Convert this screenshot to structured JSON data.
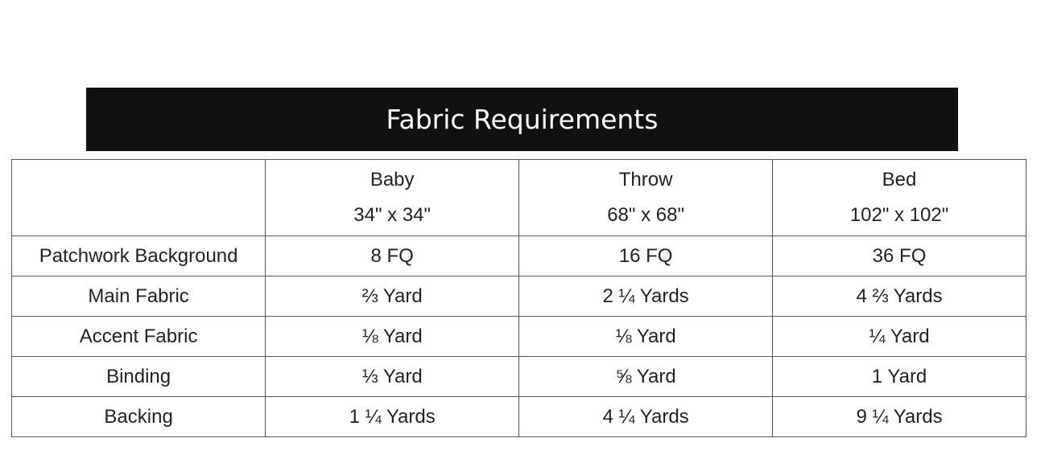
{
  "title": "Fabric Requirements",
  "columns": [
    {
      "name": "Baby",
      "size": "34\" x 34\""
    },
    {
      "name": "Throw",
      "size": "68\" x 68\""
    },
    {
      "name": "Bed",
      "size": "102\" x 102\""
    }
  ],
  "rows": [
    {
      "label": "Patchwork Background",
      "values": [
        "8 FQ",
        "16 FQ",
        "36 FQ"
      ]
    },
    {
      "label": "Main Fabric",
      "values": [
        "⅔ Yard",
        "2 ¼ Yards",
        "4 ⅔ Yards"
      ]
    },
    {
      "label": "Accent Fabric",
      "values": [
        "⅛ Yard",
        "⅛ Yard",
        "¼ Yard"
      ]
    },
    {
      "label": "Binding",
      "values": [
        "⅓ Yard",
        "⅝ Yard",
        "1 Yard"
      ]
    },
    {
      "label": "Backing",
      "values": [
        "1 ¼ Yards",
        "4 ¼ Yards",
        "9 ¼ Yards"
      ]
    }
  ]
}
